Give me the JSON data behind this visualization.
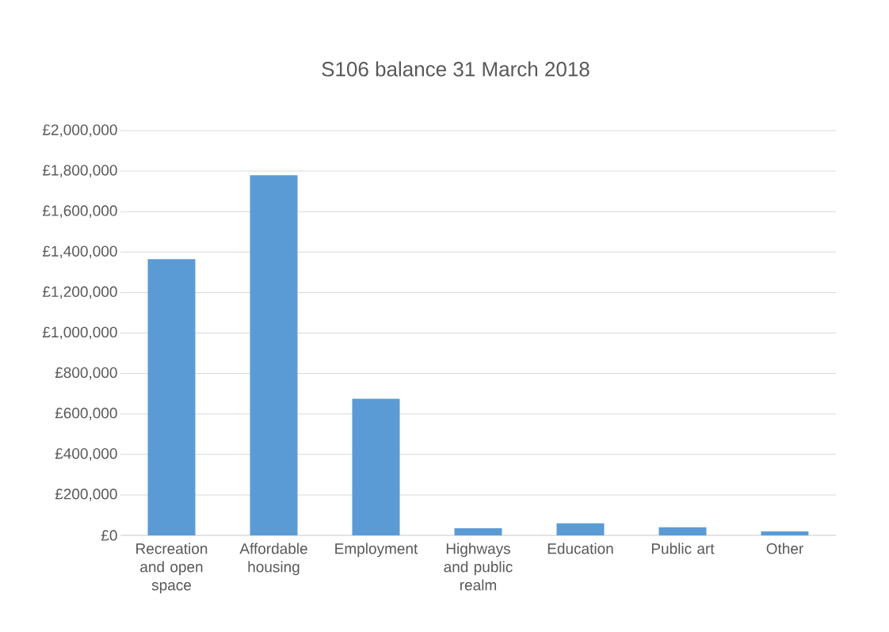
{
  "chart_data": {
    "type": "bar",
    "title": "S106 balance 31 March 2018",
    "categories": [
      "Recreation and open space",
      "Affordable housing",
      "Employment",
      "Highways and public realm",
      "Education",
      "Public art",
      "Other"
    ],
    "values": [
      1365000,
      1780000,
      675000,
      35000,
      60000,
      40000,
      20000
    ],
    "color": "#5b9bd5",
    "ylim": [
      0,
      2000000
    ],
    "yticks": [
      {
        "value": 0,
        "label": "£0"
      },
      {
        "value": 200000,
        "label": "£200,000"
      },
      {
        "value": 400000,
        "label": "£400,000"
      },
      {
        "value": 600000,
        "label": "£600,000"
      },
      {
        "value": 800000,
        "label": "£800,000"
      },
      {
        "value": 1000000,
        "label": "£1,000,000"
      },
      {
        "value": 1200000,
        "label": "£1,200,000"
      },
      {
        "value": 1400000,
        "label": "£1,400,000"
      },
      {
        "value": 1600000,
        "label": "£1,600,000"
      },
      {
        "value": 1800000,
        "label": "£1,800,000"
      },
      {
        "value": 2000000,
        "label": "£2,000,000"
      }
    ],
    "grid": "y"
  }
}
